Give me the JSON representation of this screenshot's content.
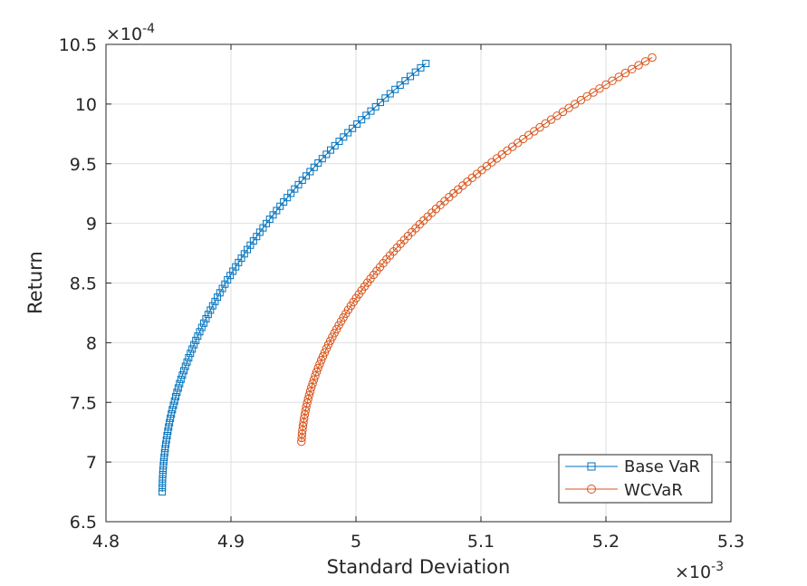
{
  "chart_data": {
    "type": "line",
    "xlabel": "Standard Deviation",
    "ylabel": "Return",
    "x_multiplier_label": "×10",
    "x_multiplier_exp": "-3",
    "y_multiplier_label": "×10",
    "y_multiplier_exp": "-4",
    "xlim": [
      4.8,
      5.3
    ],
    "ylim": [
      6.5,
      10.5
    ],
    "xticks": [
      4.8,
      4.9,
      5.0,
      5.1,
      5.2,
      5.3
    ],
    "xtick_labels": [
      "4.8",
      "4.9",
      "5",
      "5.1",
      "5.2",
      "5.3"
    ],
    "yticks": [
      6.5,
      7,
      7.5,
      8,
      8.5,
      9,
      9.5,
      10,
      10.5
    ],
    "ytick_labels": [
      "6.5",
      "7",
      "7.5",
      "8",
      "8.5",
      "9",
      "9.5",
      "10",
      "10.5"
    ],
    "grid": true,
    "legend_position": "bottom-right",
    "series": [
      {
        "name": "Base VaR",
        "color": "#0072BD",
        "marker": "square",
        "x_start": 4.845,
        "x_end": 5.056,
        "y_start": 6.75,
        "y_end": 10.34,
        "x_vertex": 4.845,
        "y_vertex": 6.73,
        "num_points": 100
      },
      {
        "name": "WCVaR",
        "color": "#D95319",
        "marker": "circle",
        "x_start": 4.956,
        "x_end": 5.237,
        "y_start": 7.17,
        "y_end": 10.39,
        "x_vertex": 4.956,
        "y_vertex": 7.05,
        "num_points": 100
      }
    ]
  }
}
